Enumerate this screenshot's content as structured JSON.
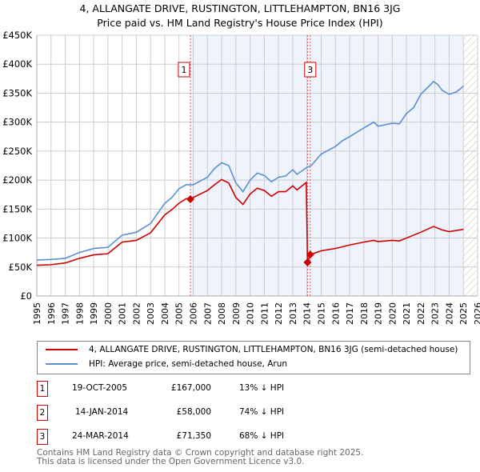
{
  "chart_data": {
    "type": "line",
    "title": "4, ALLANGATE DRIVE, RUSTINGTON, LITTLEHAMPTON, BN16 3JG",
    "subtitle": "Price paid vs. HM Land Registry's House Price Index (HPI)",
    "xlim": [
      1995,
      2026
    ],
    "ylim": [
      0,
      450000
    ],
    "y_ticks": [
      0,
      50000,
      100000,
      150000,
      200000,
      250000,
      300000,
      350000,
      400000,
      450000
    ],
    "y_tick_labels": [
      "£0",
      "£50K",
      "£100K",
      "£150K",
      "£200K",
      "£250K",
      "£300K",
      "£350K",
      "£400K",
      "£450K"
    ],
    "x_ticks": [
      1995,
      1996,
      1997,
      1998,
      1999,
      2000,
      2001,
      2002,
      2003,
      2004,
      2005,
      2006,
      2007,
      2008,
      2009,
      2010,
      2011,
      2012,
      2013,
      2014,
      2015,
      2016,
      2017,
      2018,
      2019,
      2020,
      2021,
      2022,
      2023,
      2024,
      2025,
      2026
    ],
    "grid": true,
    "colors": {
      "property": "#cc0000",
      "hpi": "#5b8fd4",
      "shade": "#eef3fc"
    },
    "series": [
      {
        "name": "HPI: Average price, semi-detached house, Arun",
        "x": [
          1995,
          1996,
          1997,
          1998,
          1999,
          2000,
          2001,
          2002,
          2003,
          2004,
          2004.5,
          2005,
          2005.5,
          2006,
          2007,
          2007.5,
          2008,
          2008.5,
          2009,
          2009.5,
          2010,
          2010.5,
          2011,
          2011.5,
          2012,
          2012.5,
          2013,
          2013.3,
          2014,
          2014.3,
          2015,
          2016,
          2016.5,
          2017,
          2018,
          2018.7,
          2019,
          2020,
          2020.5,
          2021,
          2021.5,
          2022,
          2022.5,
          2022.9,
          2023.2,
          2023.5,
          2024,
          2024.5,
          2025
        ],
        "y": [
          62000,
          63000,
          65000,
          75000,
          82000,
          84000,
          105000,
          110000,
          125000,
          160000,
          170000,
          185000,
          192000,
          192000,
          205000,
          220000,
          230000,
          225000,
          195000,
          180000,
          200000,
          212000,
          208000,
          197000,
          205000,
          207000,
          218000,
          210000,
          222000,
          225000,
          245000,
          258000,
          268000,
          275000,
          290000,
          300000,
          293000,
          298000,
          297000,
          315000,
          325000,
          348000,
          360000,
          370000,
          365000,
          355000,
          348000,
          352000,
          362000
        ]
      },
      {
        "name": "4, ALLANGATE DRIVE, RUSTINGTON, LITTLEHAMPTON, BN16 3JG (semi-detached house)",
        "x": [
          1995,
          1996,
          1997,
          1998,
          1999,
          2000,
          2001,
          2002,
          2003,
          2004,
          2004.5,
          2005,
          2005.5,
          2005.8,
          2006,
          2007,
          2007.5,
          2008,
          2008.5,
          2009,
          2009.5,
          2010,
          2010.5,
          2011,
          2011.5,
          2012,
          2012.5,
          2013,
          2013.3,
          2013.95,
          2014.04,
          2014.23,
          2015,
          2016,
          2017,
          2018,
          2018.7,
          2019,
          2020,
          2020.5,
          2021,
          2022,
          2022.9,
          2023.5,
          2024,
          2025
        ],
        "y": [
          53000,
          54000,
          57000,
          65000,
          71000,
          73000,
          93000,
          96000,
          109000,
          140000,
          149000,
          160000,
          168000,
          167000,
          170000,
          182000,
          192000,
          201000,
          195000,
          170000,
          158000,
          176000,
          186000,
          182000,
          172000,
          180000,
          180000,
          190000,
          183000,
          196000,
          58000,
          71350,
          78000,
          82000,
          88000,
          93000,
          96000,
          94000,
          96000,
          95000,
          100000,
          110000,
          120000,
          114000,
          111000,
          115000
        ]
      }
    ],
    "sales": [
      {
        "label": "1",
        "date": "19-OCT-2005",
        "x": 2005.8,
        "price": "£167,000",
        "value": 167000,
        "hpi_diff": "13% ↓ HPI"
      },
      {
        "label": "2",
        "date": "14-JAN-2014",
        "x": 2014.04,
        "price": "£58,000",
        "value": 58000,
        "hpi_diff": "74% ↓ HPI"
      },
      {
        "label": "3",
        "date": "24-MAR-2014",
        "x": 2014.23,
        "price": "£71,350",
        "value": 71350,
        "hpi_diff": "68% ↓ HPI"
      }
    ],
    "legend": {
      "property": "4, ALLANGATE DRIVE, RUSTINGTON, LITTLEHAMPTON, BN16 3JG (semi-detached house)",
      "hpi": "HPI: Average price, semi-detached house, Arun"
    }
  },
  "footer": {
    "line1": "Contains HM Land Registry data © Crown copyright and database right 2025.",
    "line2": "This data is licensed under the Open Government Licence v3.0."
  }
}
